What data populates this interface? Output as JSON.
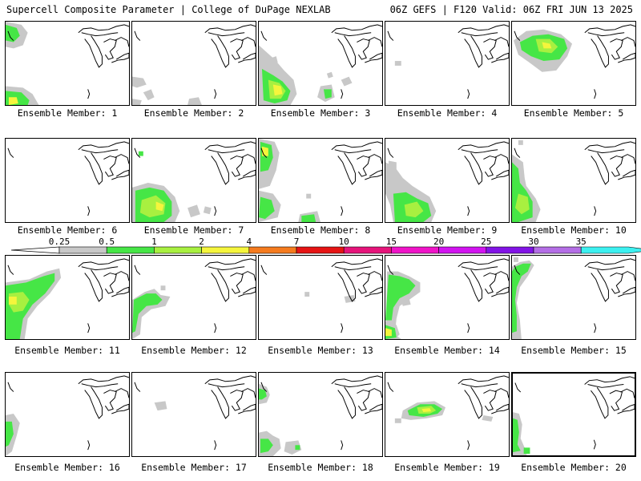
{
  "header": {
    "left": "Supercell Composite Parameter | College of DuPage NEXLAB",
    "right": "06Z GEFS | F120 Valid: 06Z FRI JUN 13 2025"
  },
  "legend": {
    "ticks": [
      "0.25",
      "0.5",
      "1",
      "2",
      "4",
      "7",
      "10",
      "15",
      "20",
      "25",
      "30",
      "35"
    ],
    "colors": [
      "#c8c8c8",
      "#46e646",
      "#a8f040",
      "#f5f53c",
      "#f57b1e",
      "#e61414",
      "#e6147a",
      "#f014c8",
      "#d214f0",
      "#8214e6",
      "#b46ee6",
      "#3cf0f0"
    ]
  },
  "members": [
    {
      "label": "Ensemble Member: 1"
    },
    {
      "label": "Ensemble Member: 2"
    },
    {
      "label": "Ensemble Member: 3"
    },
    {
      "label": "Ensemble Member: 4"
    },
    {
      "label": "Ensemble Member: 5"
    },
    {
      "label": "Ensemble Member: 6"
    },
    {
      "label": "Ensemble Member: 7"
    },
    {
      "label": "Ensemble Member: 8"
    },
    {
      "label": "Ensemble Member: 9"
    },
    {
      "label": "Ensemble Member: 10"
    },
    {
      "label": "Ensemble Member: 11"
    },
    {
      "label": "Ensemble Member: 12"
    },
    {
      "label": "Ensemble Member: 13"
    },
    {
      "label": "Ensemble Member: 14"
    },
    {
      "label": "Ensemble Member: 15"
    },
    {
      "label": "Ensemble Member: 16"
    },
    {
      "label": "Ensemble Member: 17"
    },
    {
      "label": "Ensemble Member: 18"
    },
    {
      "label": "Ensemble Member: 19"
    },
    {
      "label": "Ensemble Member: 20"
    }
  ]
}
